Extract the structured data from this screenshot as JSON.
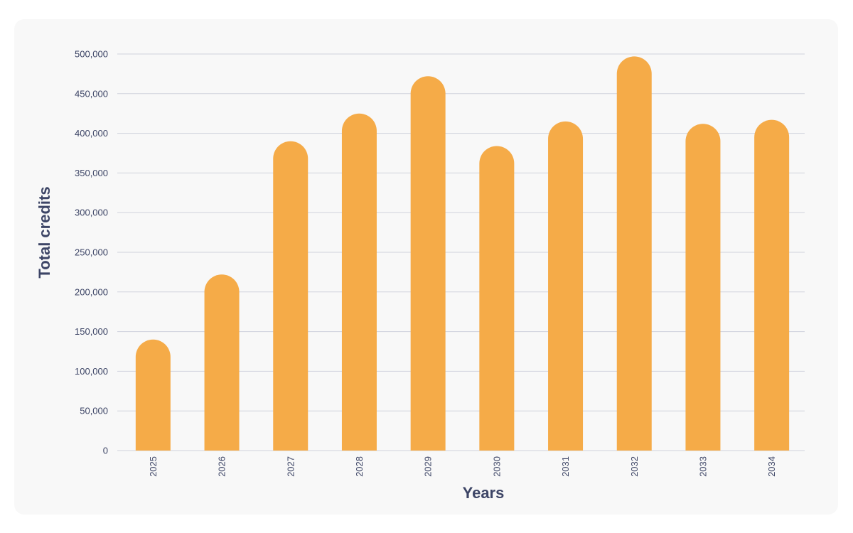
{
  "chart_data": {
    "type": "bar",
    "title": "",
    "xlabel": "Years",
    "ylabel": "Total credits",
    "categories": [
      "2025",
      "2026",
      "2027",
      "2028",
      "2029",
      "2030",
      "2031",
      "2032",
      "2033",
      "2034"
    ],
    "values": [
      140000,
      222000,
      390000,
      425000,
      472000,
      384000,
      415000,
      497000,
      412000,
      417000
    ],
    "ylim": [
      0,
      500000
    ],
    "yticks": [
      "0",
      "50,000",
      "100,000",
      "150,000",
      "200,000",
      "250,000",
      "300,000",
      "350,000",
      "400,000",
      "450,000",
      "500,000"
    ],
    "ytick_values": [
      0,
      50000,
      100000,
      150000,
      200000,
      250000,
      300000,
      350000,
      400000,
      450000,
      500000
    ],
    "grid": true,
    "bar_color": "#f5ab48",
    "grid_color": "#cfd2dc",
    "text_color": "#3d4566"
  }
}
